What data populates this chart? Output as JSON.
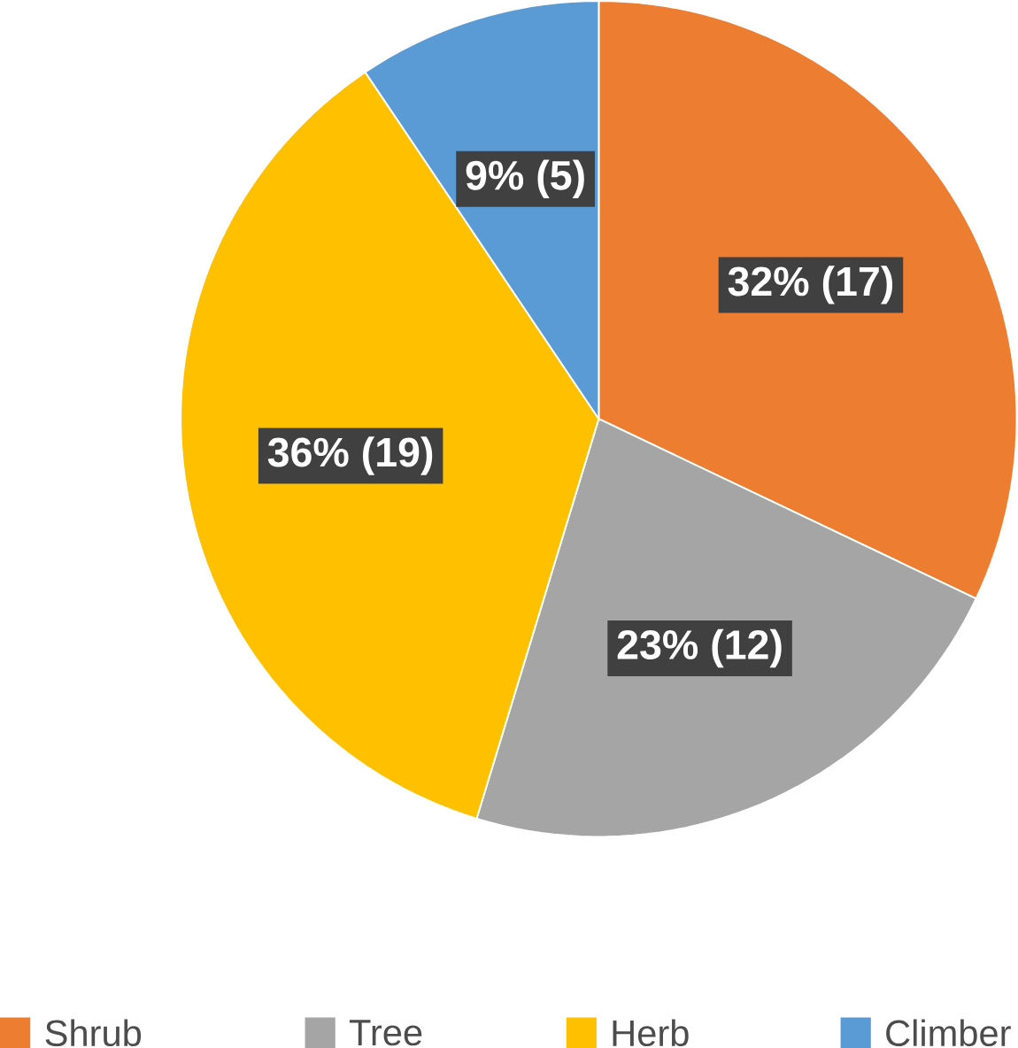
{
  "chart_data": {
    "type": "pie",
    "categories": [
      "Shrub",
      "Tree",
      "Herb",
      "Climber"
    ],
    "values": [
      17,
      12,
      19,
      5
    ],
    "colors": [
      "#ed7d31",
      "#a5a5a5",
      "#ffc000",
      "#5b9bd5"
    ],
    "value_labels": [
      "32% (17)",
      "23% (12)",
      "36% (19)",
      "9% (5)"
    ],
    "legend": "bottom"
  }
}
